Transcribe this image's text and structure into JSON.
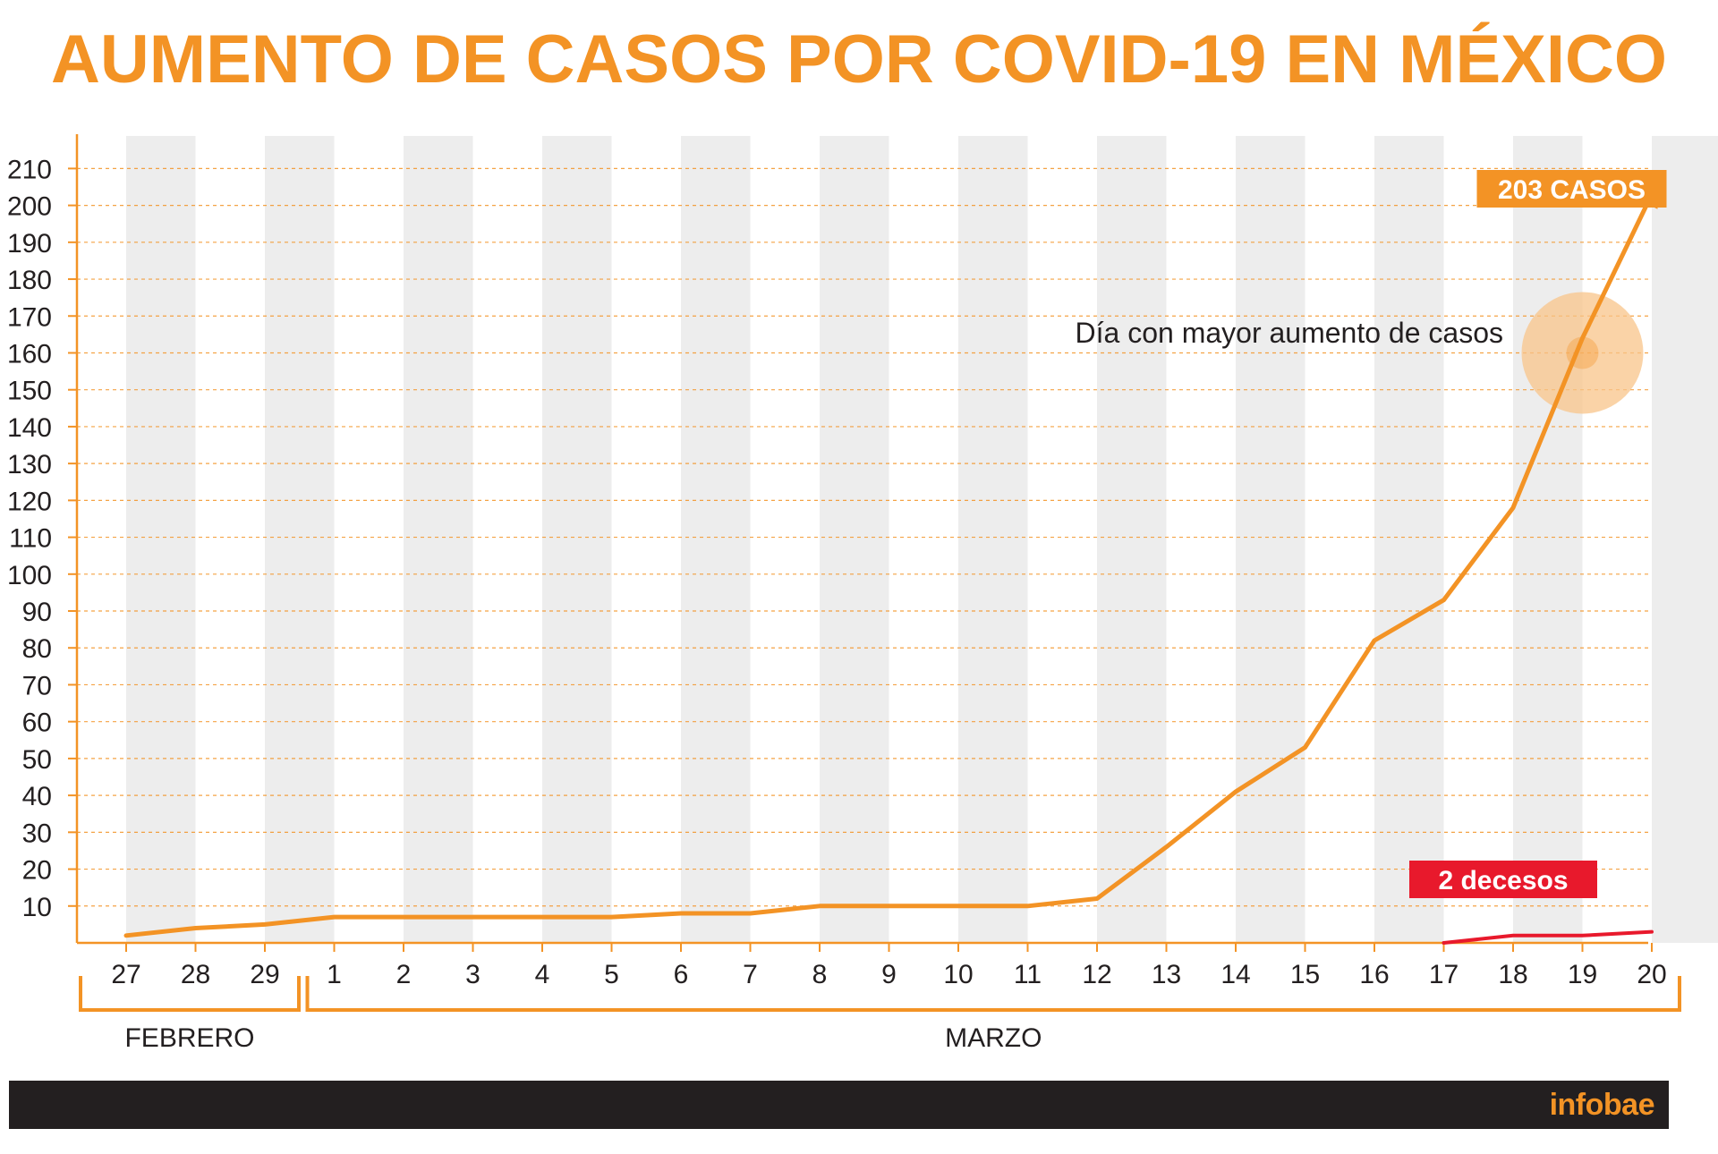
{
  "title": "AUMENTO DE CASOS POR COVID-19 EN MÉXICO",
  "colors": {
    "accent": "#f39325",
    "deaths": "#e8192c",
    "band": "#ededed",
    "text": "#231f20",
    "footer": "#231f20",
    "highlight": "#f8c48a"
  },
  "chart_data": {
    "type": "line",
    "title": "AUMENTO DE CASOS POR COVID-19 EN MÉXICO",
    "xlabel": "",
    "ylabel": "",
    "categories": [
      "27",
      "28",
      "29",
      "1",
      "2",
      "3",
      "4",
      "5",
      "6",
      "7",
      "8",
      "9",
      "10",
      "11",
      "12",
      "13",
      "14",
      "15",
      "16",
      "17",
      "18",
      "19",
      "20"
    ],
    "x_groups": [
      {
        "label": "FEBRERO",
        "from": 0,
        "to": 2
      },
      {
        "label": "MARZO",
        "from": 3,
        "to": 22
      }
    ],
    "ylim": [
      0,
      210
    ],
    "yticks": [
      10,
      20,
      30,
      40,
      50,
      60,
      70,
      80,
      90,
      100,
      110,
      120,
      130,
      140,
      150,
      160,
      170,
      180,
      190,
      200,
      210
    ],
    "grid": true,
    "series": [
      {
        "values": [
          2,
          4,
          5,
          7,
          7,
          7,
          7,
          7,
          8,
          8,
          10,
          10,
          10,
          10,
          12,
          26,
          41,
          53,
          82,
          93,
          118,
          164,
          203
        ]
      },
      {
        "values": [
          null,
          null,
          null,
          null,
          null,
          null,
          null,
          null,
          null,
          null,
          null,
          null,
          null,
          null,
          null,
          null,
          null,
          null,
          null,
          0,
          2,
          2,
          3
        ]
      }
    ],
    "annotations": [
      {
        "text": "203 CASOS",
        "x_index": 21,
        "value": 203
      },
      {
        "text": "Día con mayor aumento de casos",
        "x_index": 21,
        "value": 160
      },
      {
        "text": "2 decesos",
        "x_index": 20,
        "value": 2
      }
    ]
  },
  "footer": {
    "logo": "infobae"
  }
}
